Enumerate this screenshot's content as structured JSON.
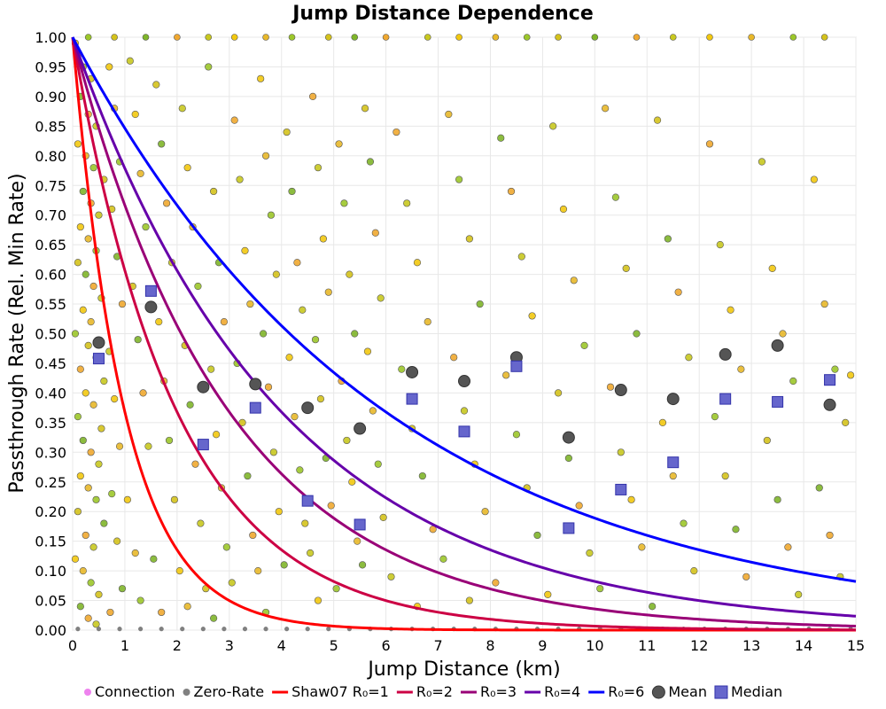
{
  "chart_data": {
    "type": "scatter",
    "title": "Jump Distance Dependence",
    "xlabel": "Jump Distance (km)",
    "ylabel": "Passthrough Rate (Rel. Min Rate)",
    "xlim": [
      0,
      15
    ],
    "ylim": [
      0,
      1
    ],
    "x_ticks": [
      "0",
      "1",
      "2",
      "3",
      "4",
      "5",
      "6",
      "7",
      "8",
      "9",
      "10",
      "11",
      "12",
      "13",
      "14",
      "15"
    ],
    "y_ticks": [
      "0.00",
      "0.05",
      "0.10",
      "0.15",
      "0.20",
      "0.25",
      "0.30",
      "0.35",
      "0.40",
      "0.45",
      "0.50",
      "0.55",
      "0.60",
      "0.65",
      "0.70",
      "0.75",
      "0.80",
      "0.85",
      "0.90",
      "0.95",
      "1.00"
    ],
    "grid": true,
    "legend_position": "bottom",
    "legend": [
      {
        "label": "Connection",
        "kind": "dot",
        "color": "#ee82ee"
      },
      {
        "label": "Zero-Rate",
        "kind": "dot",
        "color": "#808080"
      },
      {
        "label": "Shaw07 R₀=1",
        "kind": "line",
        "color": "#ff0000"
      },
      {
        "label": "R₀=2",
        "kind": "line",
        "color": "#cc0044"
      },
      {
        "label": "R₀=3",
        "kind": "line",
        "color": "#990077"
      },
      {
        "label": "R₀=4",
        "kind": "line",
        "color": "#6600aa"
      },
      {
        "label": "R₀=6",
        "kind": "line",
        "color": "#0000ff"
      },
      {
        "label": "Mean",
        "kind": "circle",
        "color": "#555555"
      },
      {
        "label": "Median",
        "kind": "square",
        "color": "#6666cc"
      }
    ],
    "curves": [
      {
        "name": "Shaw07 R₀=1",
        "r0": 1,
        "color": "#ff0000"
      },
      {
        "name": "R₀=2",
        "r0": 2,
        "color": "#cc0044"
      },
      {
        "name": "R₀=3",
        "r0": 3,
        "color": "#990077"
      },
      {
        "name": "R₀=4",
        "r0": 4,
        "color": "#6600aa"
      },
      {
        "name": "R₀=6",
        "r0": 6,
        "color": "#0000ff"
      }
    ],
    "mean": {
      "x": [
        0.5,
        1.5,
        2.5,
        3.5,
        4.5,
        5.5,
        6.5,
        7.5,
        8.5,
        9.5,
        10.5,
        11.5,
        12.5,
        13.5,
        14.5
      ],
      "y": [
        0.485,
        0.545,
        0.41,
        0.415,
        0.375,
        0.34,
        0.435,
        0.42,
        0.46,
        0.325,
        0.405,
        0.39,
        0.465,
        0.48,
        0.38
      ]
    },
    "median": {
      "x": [
        0.5,
        1.5,
        2.5,
        3.5,
        4.5,
        5.5,
        6.5,
        7.5,
        8.5,
        9.5,
        10.5,
        11.5,
        12.5,
        13.5,
        14.5
      ],
      "y": [
        0.458,
        0.572,
        0.313,
        0.375,
        0.218,
        0.178,
        0.39,
        0.335,
        0.445,
        0.172,
        0.237,
        0.283,
        0.39,
        0.385,
        0.422
      ]
    },
    "connections": [
      [
        0.05,
        0.99
      ],
      [
        0.1,
        0.97
      ],
      [
        0.2,
        0.95
      ],
      [
        0.35,
        0.93
      ],
      [
        0.15,
        0.9
      ],
      [
        0.3,
        0.87
      ],
      [
        0.45,
        0.85
      ],
      [
        0.1,
        0.82
      ],
      [
        0.25,
        0.8
      ],
      [
        0.4,
        0.78
      ],
      [
        0.6,
        0.76
      ],
      [
        0.2,
        0.74
      ],
      [
        0.35,
        0.72
      ],
      [
        0.5,
        0.7
      ],
      [
        0.15,
        0.68
      ],
      [
        0.3,
        0.66
      ],
      [
        0.45,
        0.64
      ],
      [
        0.1,
        0.62
      ],
      [
        0.25,
        0.6
      ],
      [
        0.4,
        0.58
      ],
      [
        0.55,
        0.56
      ],
      [
        0.2,
        0.54
      ],
      [
        0.35,
        0.52
      ],
      [
        0.05,
        0.5
      ],
      [
        0.3,
        0.48
      ],
      [
        0.45,
        0.46
      ],
      [
        0.15,
        0.44
      ],
      [
        0.6,
        0.42
      ],
      [
        0.25,
        0.4
      ],
      [
        0.4,
        0.38
      ],
      [
        0.1,
        0.36
      ],
      [
        0.55,
        0.34
      ],
      [
        0.2,
        0.32
      ],
      [
        0.35,
        0.3
      ],
      [
        0.5,
        0.28
      ],
      [
        0.15,
        0.26
      ],
      [
        0.3,
        0.24
      ],
      [
        0.45,
        0.22
      ],
      [
        0.1,
        0.2
      ],
      [
        0.6,
        0.18
      ],
      [
        0.25,
        0.16
      ],
      [
        0.4,
        0.14
      ],
      [
        0.05,
        0.12
      ],
      [
        0.2,
        0.1
      ],
      [
        0.35,
        0.08
      ],
      [
        0.5,
        0.06
      ],
      [
        0.15,
        0.04
      ],
      [
        0.3,
        0.02
      ],
      [
        0.45,
        0.01
      ],
      [
        0.7,
        0.95
      ],
      [
        0.8,
        0.88
      ],
      [
        0.9,
        0.79
      ],
      [
        0.75,
        0.71
      ],
      [
        0.85,
        0.63
      ],
      [
        0.95,
        0.55
      ],
      [
        0.7,
        0.47
      ],
      [
        0.8,
        0.39
      ],
      [
        0.9,
        0.31
      ],
      [
        0.75,
        0.23
      ],
      [
        0.85,
        0.15
      ],
      [
        0.95,
        0.07
      ],
      [
        0.72,
        0.03
      ],
      [
        1.1,
        0.96
      ],
      [
        1.2,
        0.87
      ],
      [
        1.3,
        0.77
      ],
      [
        1.4,
        0.68
      ],
      [
        1.15,
        0.58
      ],
      [
        1.25,
        0.49
      ],
      [
        1.35,
        0.4
      ],
      [
        1.45,
        0.31
      ],
      [
        1.05,
        0.22
      ],
      [
        1.2,
        0.13
      ],
      [
        1.3,
        0.05
      ],
      [
        1.6,
        0.92
      ],
      [
        1.7,
        0.82
      ],
      [
        1.8,
        0.72
      ],
      [
        1.9,
        0.62
      ],
      [
        1.65,
        0.52
      ],
      [
        1.75,
        0.42
      ],
      [
        1.85,
        0.32
      ],
      [
        1.95,
        0.22
      ],
      [
        1.55,
        0.12
      ],
      [
        1.7,
        0.03
      ],
      [
        2.1,
        0.88
      ],
      [
        2.2,
        0.78
      ],
      [
        2.3,
        0.68
      ],
      [
        2.4,
        0.58
      ],
      [
        2.15,
        0.48
      ],
      [
        2.25,
        0.38
      ],
      [
        2.35,
        0.28
      ],
      [
        2.45,
        0.18
      ],
      [
        2.05,
        0.1
      ],
      [
        2.2,
        0.04
      ],
      [
        2.6,
        0.95
      ],
      [
        2.7,
        0.74
      ],
      [
        2.8,
        0.62
      ],
      [
        2.9,
        0.52
      ],
      [
        2.65,
        0.44
      ],
      [
        2.75,
        0.33
      ],
      [
        2.85,
        0.24
      ],
      [
        2.95,
        0.14
      ],
      [
        2.55,
        0.07
      ],
      [
        2.7,
        0.02
      ],
      [
        3.1,
        0.86
      ],
      [
        3.2,
        0.76
      ],
      [
        3.3,
        0.64
      ],
      [
        3.4,
        0.55
      ],
      [
        3.15,
        0.45
      ],
      [
        3.25,
        0.35
      ],
      [
        3.35,
        0.26
      ],
      [
        3.45,
        0.16
      ],
      [
        3.05,
        0.08
      ],
      [
        3.6,
        0.93
      ],
      [
        3.7,
        0.8
      ],
      [
        3.8,
        0.7
      ],
      [
        3.9,
        0.6
      ],
      [
        3.65,
        0.5
      ],
      [
        3.75,
        0.41
      ],
      [
        3.85,
        0.3
      ],
      [
        3.95,
        0.2
      ],
      [
        3.55,
        0.1
      ],
      [
        3.7,
        0.03
      ],
      [
        4.1,
        0.84
      ],
      [
        4.2,
        0.74
      ],
      [
        4.3,
        0.62
      ],
      [
        4.4,
        0.54
      ],
      [
        4.15,
        0.46
      ],
      [
        4.25,
        0.36
      ],
      [
        4.35,
        0.27
      ],
      [
        4.45,
        0.18
      ],
      [
        4.05,
        0.11
      ],
      [
        4.6,
        0.9
      ],
      [
        4.7,
        0.78
      ],
      [
        4.8,
        0.66
      ],
      [
        4.9,
        0.57
      ],
      [
        4.65,
        0.49
      ],
      [
        4.75,
        0.39
      ],
      [
        4.85,
        0.29
      ],
      [
        4.95,
        0.21
      ],
      [
        4.55,
        0.13
      ],
      [
        4.7,
        0.05
      ],
      [
        5.1,
        0.82
      ],
      [
        5.2,
        0.72
      ],
      [
        5.3,
        0.6
      ],
      [
        5.4,
        0.5
      ],
      [
        5.15,
        0.42
      ],
      [
        5.25,
        0.32
      ],
      [
        5.35,
        0.25
      ],
      [
        5.45,
        0.15
      ],
      [
        5.05,
        0.07
      ],
      [
        5.6,
        0.88
      ],
      [
        5.7,
        0.79
      ],
      [
        5.8,
        0.67
      ],
      [
        5.9,
        0.56
      ],
      [
        5.65,
        0.47
      ],
      [
        5.75,
        0.37
      ],
      [
        5.85,
        0.28
      ],
      [
        5.95,
        0.19
      ],
      [
        5.55,
        0.11
      ],
      [
        6.2,
        0.84
      ],
      [
        6.4,
        0.72
      ],
      [
        6.6,
        0.62
      ],
      [
        6.8,
        0.52
      ],
      [
        6.3,
        0.44
      ],
      [
        6.5,
        0.34
      ],
      [
        6.7,
        0.26
      ],
      [
        6.9,
        0.17
      ],
      [
        6.1,
        0.09
      ],
      [
        6.6,
        0.04
      ],
      [
        7.2,
        0.87
      ],
      [
        7.4,
        0.76
      ],
      [
        7.6,
        0.66
      ],
      [
        7.8,
        0.55
      ],
      [
        7.3,
        0.46
      ],
      [
        7.5,
        0.37
      ],
      [
        7.7,
        0.28
      ],
      [
        7.9,
        0.2
      ],
      [
        7.1,
        0.12
      ],
      [
        7.6,
        0.05
      ],
      [
        8.2,
        0.83
      ],
      [
        8.4,
        0.74
      ],
      [
        8.6,
        0.63
      ],
      [
        8.8,
        0.53
      ],
      [
        8.3,
        0.43
      ],
      [
        8.5,
        0.33
      ],
      [
        8.7,
        0.24
      ],
      [
        8.9,
        0.16
      ],
      [
        8.1,
        0.08
      ],
      [
        9.2,
        0.85
      ],
      [
        9.4,
        0.71
      ],
      [
        9.6,
        0.59
      ],
      [
        9.8,
        0.48
      ],
      [
        9.3,
        0.4
      ],
      [
        9.5,
        0.29
      ],
      [
        9.7,
        0.21
      ],
      [
        9.9,
        0.13
      ],
      [
        9.1,
        0.06
      ],
      [
        10.2,
        0.88
      ],
      [
        10.4,
        0.73
      ],
      [
        10.6,
        0.61
      ],
      [
        10.8,
        0.5
      ],
      [
        10.3,
        0.41
      ],
      [
        10.5,
        0.3
      ],
      [
        10.7,
        0.22
      ],
      [
        10.9,
        0.14
      ],
      [
        10.1,
        0.07
      ],
      [
        11.2,
        0.86
      ],
      [
        11.4,
        0.66
      ],
      [
        11.6,
        0.57
      ],
      [
        11.8,
        0.46
      ],
      [
        11.3,
        0.35
      ],
      [
        11.5,
        0.26
      ],
      [
        11.7,
        0.18
      ],
      [
        11.9,
        0.1
      ],
      [
        11.1,
        0.04
      ],
      [
        12.2,
        0.82
      ],
      [
        12.4,
        0.65
      ],
      [
        12.6,
        0.54
      ],
      [
        12.8,
        0.44
      ],
      [
        12.3,
        0.36
      ],
      [
        12.5,
        0.26
      ],
      [
        12.7,
        0.17
      ],
      [
        12.9,
        0.09
      ],
      [
        13.2,
        0.79
      ],
      [
        13.4,
        0.61
      ],
      [
        13.6,
        0.5
      ],
      [
        13.8,
        0.42
      ],
      [
        13.3,
        0.32
      ],
      [
        13.5,
        0.22
      ],
      [
        13.7,
        0.14
      ],
      [
        13.9,
        0.06
      ],
      [
        14.2,
        0.76
      ],
      [
        14.4,
        0.55
      ],
      [
        14.6,
        0.44
      ],
      [
        14.8,
        0.35
      ],
      [
        14.3,
        0.24
      ],
      [
        14.5,
        0.16
      ],
      [
        14.7,
        0.09
      ],
      [
        14.9,
        0.43
      ]
    ],
    "zero_rate": [
      0.1,
      0.5,
      0.9,
      1.3,
      1.7,
      2.1,
      2.5,
      2.9,
      3.3,
      3.7,
      4.1,
      4.5,
      4.9,
      5.3,
      5.7,
      6.1,
      6.5,
      6.9,
      7.3,
      7.7,
      8.1,
      8.5,
      8.9,
      9.3,
      9.7,
      10.1,
      10.5,
      10.9,
      11.3,
      11.7,
      12.1,
      12.5,
      12.9,
      13.3,
      13.7,
      14.1,
      14.5,
      14.9
    ],
    "top_points": [
      0.3,
      0.8,
      1.4,
      2.0,
      2.6,
      3.1,
      3.7,
      4.2,
      4.9,
      5.4,
      6.0,
      6.8,
      7.4,
      8.1,
      8.7,
      9.3,
      10.0,
      10.8,
      11.5,
      12.2,
      13.0,
      13.8,
      14.4
    ]
  }
}
